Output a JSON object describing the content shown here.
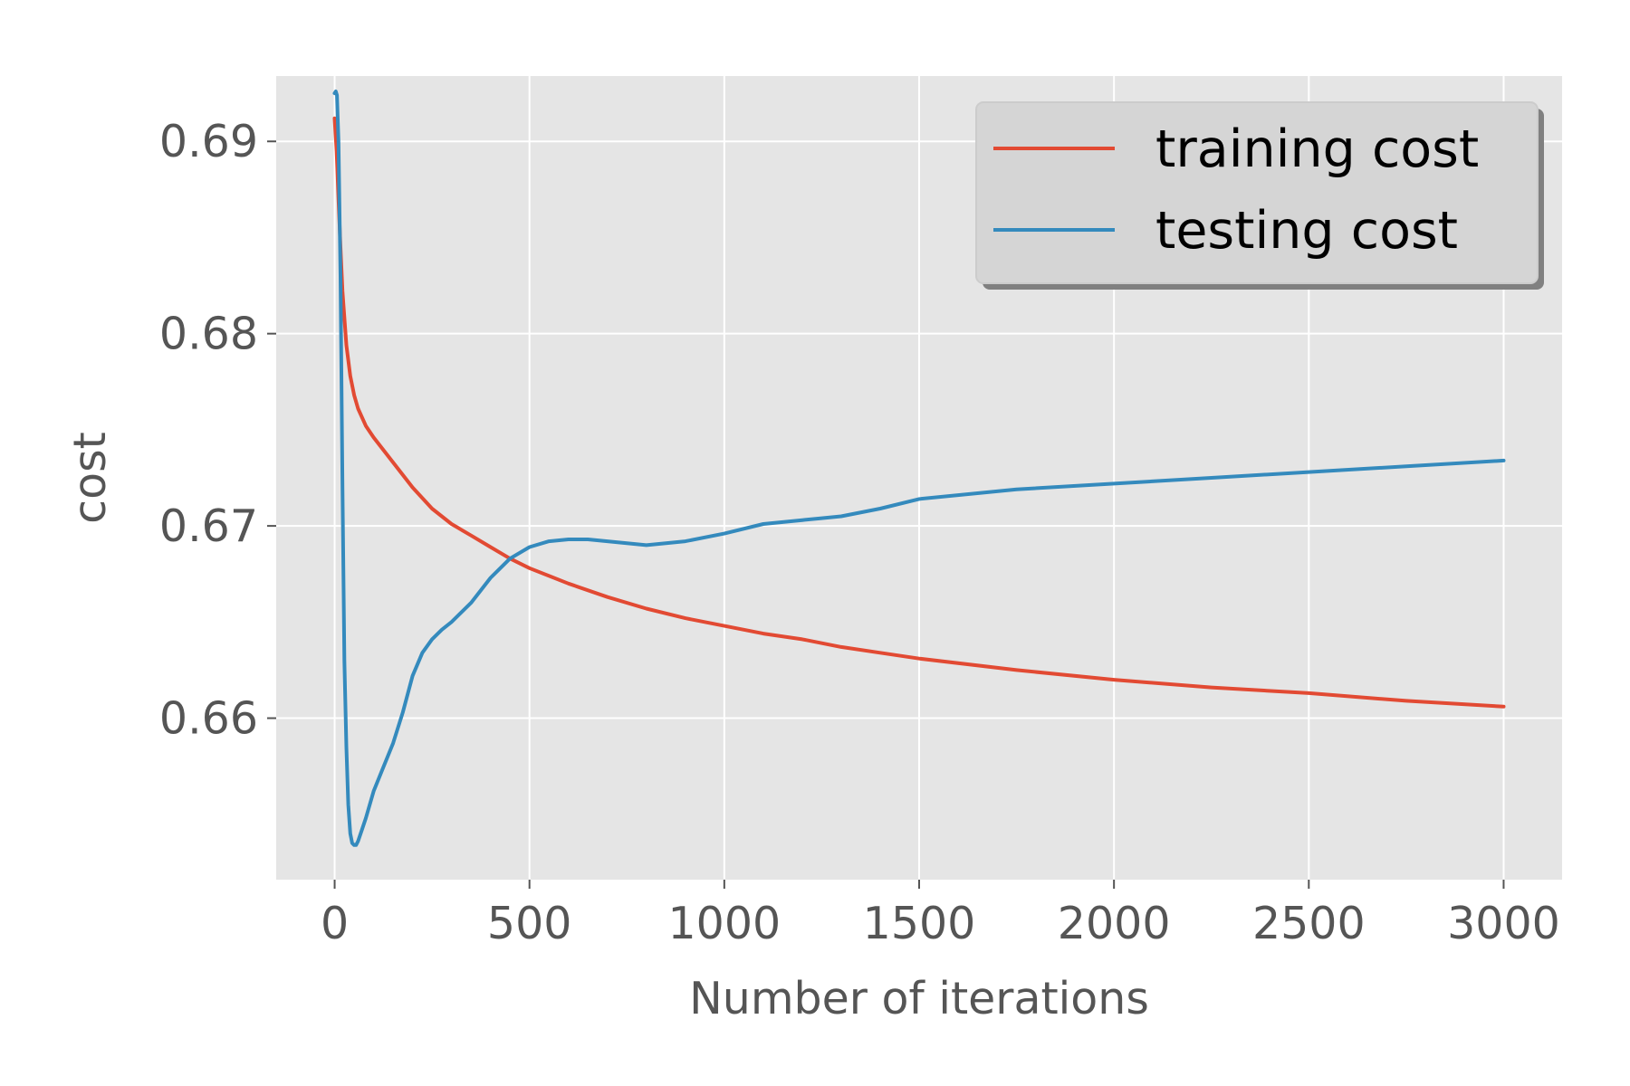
{
  "chart_data": {
    "type": "line",
    "xlabel": "Number of iterations",
    "ylabel": "cost",
    "xlim": [
      -150,
      3150
    ],
    "ylim": [
      0.6516,
      0.6934
    ],
    "xticks": [
      0,
      500,
      1000,
      1500,
      2000,
      2500,
      3000
    ],
    "xtick_labels": [
      "0",
      "500",
      "1000",
      "1500",
      "2000",
      "2500",
      "3000"
    ],
    "yticks": [
      0.66,
      0.67,
      0.68,
      0.69
    ],
    "ytick_labels": [
      "0.66",
      "0.67",
      "0.68",
      "0.69"
    ],
    "grid": true,
    "legend_position": "top-right",
    "series": [
      {
        "name": "training cost",
        "color": "#E24A33",
        "x": [
          0,
          5,
          10,
          15,
          20,
          30,
          40,
          50,
          60,
          80,
          100,
          150,
          200,
          250,
          300,
          350,
          400,
          450,
          500,
          600,
          700,
          800,
          900,
          1000,
          1100,
          1200,
          1300,
          1400,
          1500,
          1750,
          2000,
          2250,
          2500,
          2750,
          3000
        ],
        "y": [
          0.6912,
          0.6895,
          0.687,
          0.6845,
          0.6822,
          0.6794,
          0.6778,
          0.6768,
          0.6761,
          0.6752,
          0.6746,
          0.6733,
          0.672,
          0.6709,
          0.6701,
          0.6695,
          0.6689,
          0.6683,
          0.6678,
          0.667,
          0.6663,
          0.6657,
          0.6652,
          0.6648,
          0.6644,
          0.6641,
          0.6637,
          0.6634,
          0.6631,
          0.6625,
          0.662,
          0.6616,
          0.6613,
          0.6609,
          0.6606
        ]
      },
      {
        "name": "testing cost",
        "color": "#348ABD",
        "x": [
          0,
          3,
          6,
          10,
          15,
          20,
          25,
          30,
          35,
          40,
          45,
          50,
          55,
          60,
          70,
          80,
          100,
          120,
          150,
          175,
          200,
          225,
          250,
          275,
          300,
          350,
          400,
          450,
          500,
          550,
          600,
          650,
          700,
          750,
          800,
          850,
          900,
          1000,
          1100,
          1200,
          1250,
          1300,
          1400,
          1500,
          1750,
          2000,
          2250,
          2500,
          2750,
          3000
        ],
        "y": [
          0.6925,
          0.6926,
          0.6924,
          0.69,
          0.683,
          0.672,
          0.663,
          0.6585,
          0.6555,
          0.654,
          0.6535,
          0.6534,
          0.6534,
          0.6536,
          0.6542,
          0.6548,
          0.6562,
          0.6572,
          0.6587,
          0.6603,
          0.6622,
          0.6634,
          0.6641,
          0.6646,
          0.665,
          0.666,
          0.6673,
          0.6683,
          0.6689,
          0.6692,
          0.6693,
          0.6693,
          0.6692,
          0.6691,
          0.669,
          0.6691,
          0.6692,
          0.6696,
          0.6701,
          0.6703,
          0.6704,
          0.6705,
          0.6709,
          0.6714,
          0.6719,
          0.6722,
          0.6725,
          0.6728,
          0.6731,
          0.6734
        ]
      }
    ]
  }
}
